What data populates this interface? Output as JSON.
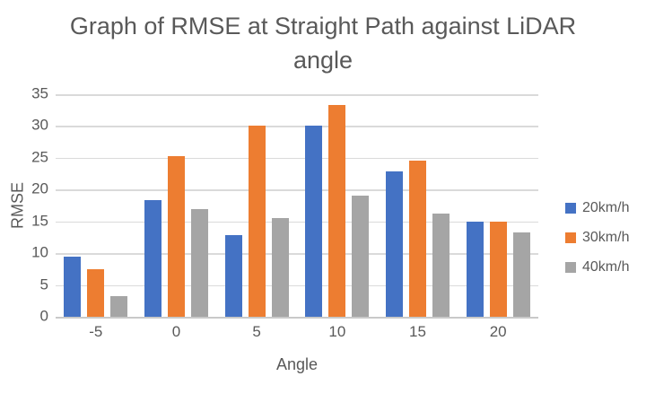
{
  "chart_data": {
    "type": "bar",
    "title": "Graph of RMSE at Straight Path against LiDAR angle",
    "xlabel": "Angle",
    "ylabel": "RMSE",
    "categories": [
      "-5",
      "0",
      "5",
      "10",
      "15",
      "20"
    ],
    "series": [
      {
        "name": "20km/h",
        "color": "#4472C4",
        "values": [
          9.5,
          18.3,
          12.8,
          30.0,
          22.9,
          14.9
        ]
      },
      {
        "name": "30km/h",
        "color": "#ED7D31",
        "values": [
          7.5,
          25.3,
          30.0,
          33.3,
          24.6,
          14.9
        ]
      },
      {
        "name": "40km/h",
        "color": "#A5A5A5",
        "values": [
          3.2,
          17.0,
          15.5,
          19.1,
          16.2,
          13.2
        ]
      }
    ],
    "ylim": [
      0,
      35
    ],
    "yticks": [
      0,
      5,
      10,
      15,
      20,
      25,
      30,
      35
    ],
    "grid": true,
    "legend_position": "right"
  },
  "style": {
    "text_color": "#595959",
    "gridline_color": "#DADADA",
    "axis_line_color": "#C9C9C9",
    "background": "#FFFFFF"
  }
}
